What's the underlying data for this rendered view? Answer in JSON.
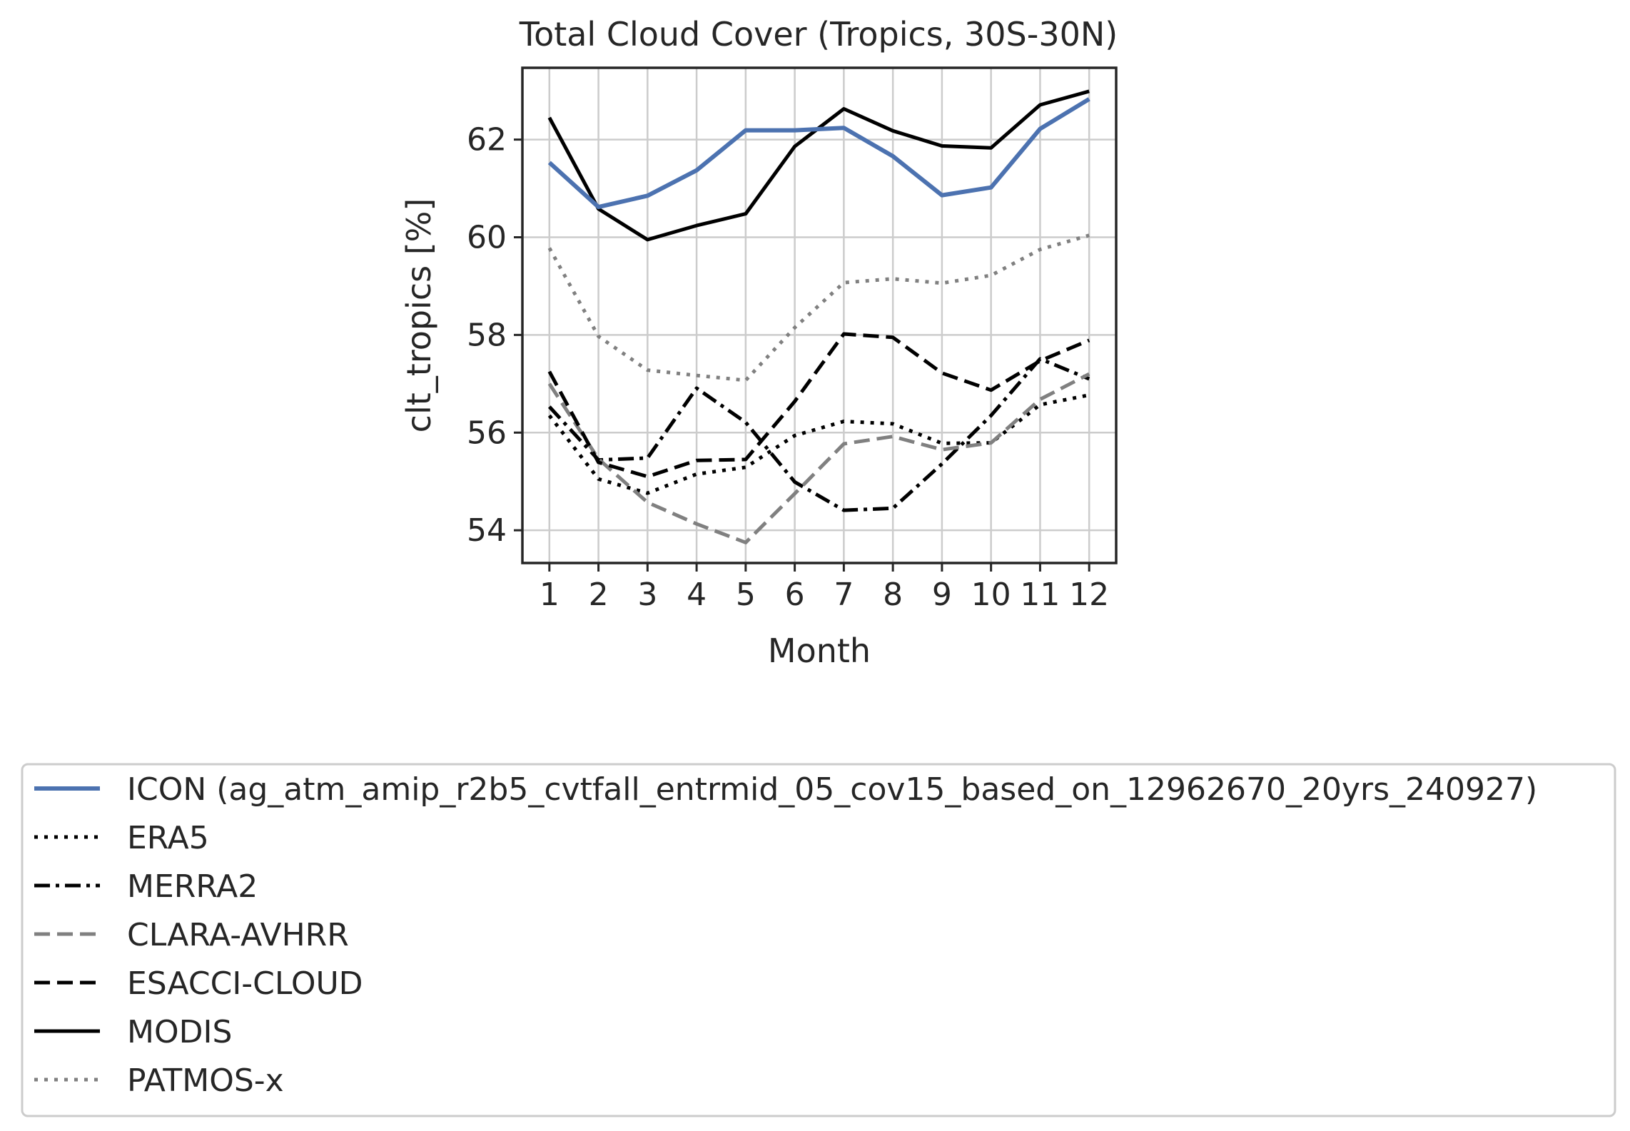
{
  "chart_data": {
    "type": "line",
    "title": "Total Cloud Cover (Tropics, 30S-30N)",
    "xlabel": "Month",
    "ylabel": "clt_tropics [%]",
    "x": [
      1,
      2,
      3,
      4,
      5,
      6,
      7,
      8,
      9,
      10,
      11,
      12
    ],
    "xlim": [
      0.45,
      12.55
    ],
    "ylim": [
      53.33,
      63.47
    ],
    "yticks": [
      54,
      56,
      58,
      60,
      62
    ],
    "grid": true,
    "legend_position": "below-plot",
    "series": [
      {
        "name": "ICON (ag_atm_amip_r2b5_cvtfall_entrmid_05_cov15_based_on_12962670_20yrs_240927)",
        "color": "#4c72b0",
        "style": "solid",
        "width": 6,
        "values": [
          61.53,
          60.62,
          60.85,
          61.37,
          62.19,
          62.19,
          62.24,
          61.66,
          60.86,
          61.02,
          62.22,
          62.83
        ]
      },
      {
        "name": "ERA5",
        "color": "#000000",
        "style": "dotted",
        "width": 5,
        "values": [
          56.35,
          55.05,
          54.76,
          55.15,
          55.29,
          55.94,
          56.23,
          56.18,
          55.78,
          55.79,
          56.57,
          56.77
        ]
      },
      {
        "name": "MERRA2",
        "color": "#000000",
        "style": "dashdot",
        "width": 5,
        "values": [
          56.53,
          55.44,
          55.48,
          56.91,
          56.21,
          54.99,
          54.41,
          54.45,
          55.36,
          56.35,
          57.51,
          57.1
        ]
      },
      {
        "name": "CLARA-AVHRR",
        "color": "#808080",
        "style": "dashed",
        "width": 5,
        "values": [
          57.0,
          55.46,
          54.57,
          54.13,
          53.75,
          54.75,
          55.77,
          55.92,
          55.65,
          55.79,
          56.68,
          57.2
        ]
      },
      {
        "name": "ESACCI-CLOUD",
        "color": "#000000",
        "style": "dashed",
        "width": 5,
        "values": [
          57.25,
          55.39,
          55.1,
          55.43,
          55.45,
          56.64,
          58.02,
          57.95,
          57.22,
          56.87,
          57.47,
          57.89
        ]
      },
      {
        "name": "MODIS",
        "color": "#000000",
        "style": "solid",
        "width": 5,
        "values": [
          62.45,
          60.58,
          59.95,
          60.24,
          60.48,
          61.86,
          62.63,
          62.18,
          61.87,
          61.83,
          62.71,
          62.99
        ]
      },
      {
        "name": "PATMOS-x",
        "color": "#808080",
        "style": "dotted",
        "width": 5,
        "values": [
          59.78,
          57.97,
          57.28,
          57.17,
          57.07,
          58.15,
          59.07,
          59.15,
          59.06,
          59.22,
          59.75,
          60.04
        ]
      }
    ]
  }
}
